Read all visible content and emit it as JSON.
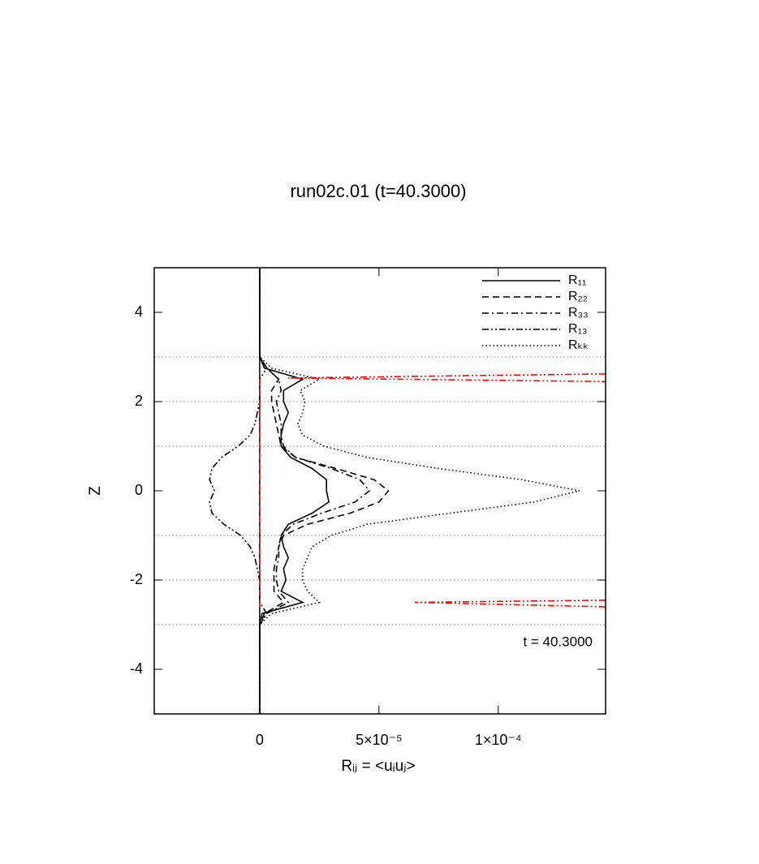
{
  "chart_data": {
    "type": "line",
    "title": "run02c.01 (t=40.3000)",
    "xlabel": "Rᵢⱼ = <uᵢuⱼ>",
    "ylabel": "Z",
    "annotation": "t = 40.3000",
    "xlim": [
      -4.42e-05,
      0.000145
    ],
    "ylim": [
      -5,
      5
    ],
    "xticks": [
      0,
      {
        "value": 5e-05,
        "label": "5×10⁻⁵"
      },
      {
        "value": 0.0001,
        "label": "1×10⁻⁴"
      }
    ],
    "yticks": [
      -4,
      -2,
      0,
      2,
      4
    ],
    "hlines": [
      3,
      2,
      1,
      -1,
      -2,
      -3
    ],
    "vline": 0,
    "legend": "upper right",
    "y": [
      -5,
      -3,
      -2.75,
      -2.5,
      -2.25,
      -2,
      -1.75,
      -1.5,
      -1.25,
      -1,
      -0.75,
      -0.5,
      -0.25,
      0,
      0.25,
      0.5,
      0.75,
      1,
      1.25,
      1.5,
      1.75,
      2,
      2.25,
      2.5,
      2.75,
      3,
      5
    ],
    "series": [
      {
        "name": "R₁₁",
        "color": "#000000",
        "dash": "solid",
        "values": [
          0,
          0,
          1e-06,
          1.8e-05,
          9e-06,
          1.1e-05,
          1e-05,
          1.2e-05,
          1e-05,
          9e-06,
          1.2e-05,
          2.2e-05,
          2.9e-05,
          2.8e-05,
          2.8e-05,
          2.2e-05,
          1.3e-05,
          9e-06,
          9e-06,
          1e-05,
          1.2e-05,
          1e-05,
          1e-05,
          1.8e-05,
          2e-06,
          0,
          0
        ]
      },
      {
        "name": "R₂₂",
        "color": "#000000",
        "dash": "dashed",
        "values": [
          0,
          0,
          2e-06,
          1e-05,
          6e-06,
          6e-06,
          6e-06,
          7e-06,
          8e-06,
          1e-05,
          2e-05,
          3.8e-05,
          5e-05,
          5.4e-05,
          4.8e-05,
          3.2e-05,
          1.5e-05,
          9e-06,
          8e-06,
          7e-06,
          6e-06,
          5e-06,
          5e-06,
          8e-06,
          3e-06,
          0,
          0
        ]
      },
      {
        "name": "R₃₃",
        "color": "#000000",
        "dash": "dashdot",
        "values": [
          0,
          0,
          3e-06,
          1.2e-05,
          8e-06,
          7e-06,
          7e-06,
          8e-06,
          8e-06,
          9e-06,
          1.4e-05,
          2.6e-05,
          4e-05,
          4.6e-05,
          4.2e-05,
          3e-05,
          1.5e-05,
          1e-05,
          9e-06,
          9e-06,
          8e-06,
          7e-06,
          9e-06,
          8e-06,
          3e-06,
          0,
          0
        ]
      },
      {
        "name": "R₁₃",
        "color": "#000000",
        "dash": "dashdotdot",
        "values": [
          0,
          0,
          3e-06,
          0,
          0,
          0,
          -1e-06,
          -2e-06,
          -4e-06,
          -8e-06,
          -1.5e-05,
          -2e-05,
          -2.1e-05,
          -1.9e-05,
          -2.1e-05,
          -2e-05,
          -1.6e-05,
          -9e-06,
          -4e-06,
          -2e-06,
          -1e-06,
          0,
          0,
          0,
          3e-06,
          0,
          0
        ]
      },
      {
        "name": "Rₖₖ",
        "color": "#000000",
        "dash": "dotted",
        "values": [
          0,
          0,
          5e-06,
          2.5e-05,
          2e-05,
          1.8e-05,
          1.8e-05,
          2e-05,
          2.2e-05,
          3e-05,
          4.5e-05,
          8e-05,
          0.000115,
          0.000134,
          0.00011,
          7.5e-05,
          4.5e-05,
          2.7e-05,
          1.8e-05,
          1.6e-05,
          1.8e-05,
          1.9e-05,
          1.7e-05,
          2.5e-05,
          5e-06,
          0,
          0
        ]
      },
      {
        "color": "#ff0000",
        "dash": "dashed",
        "y": [
          -2.6,
          2.6
        ],
        "values": [
          0,
          0
        ]
      },
      {
        "color": "#ff0000",
        "dash": "dashdotdot",
        "y": [
          2.62,
          2.53,
          2.45,
          null,
          -2.45,
          -2.5,
          -2.6
        ],
        "values": [
          0.000145,
          1.2e-05,
          0.000145,
          null,
          0.000145,
          6.5e-05,
          0.000145
        ]
      }
    ]
  }
}
